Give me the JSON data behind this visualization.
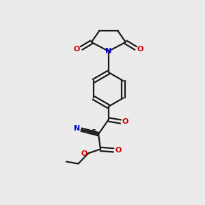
{
  "bg_color": "#ebebeb",
  "bond_color": "#1a1a1a",
  "n_color": "#0000cc",
  "o_color": "#cc0000",
  "figsize": [
    3.0,
    3.0
  ],
  "dpi": 100,
  "lw": 1.6,
  "fs": 8.0,
  "xlim": [
    0,
    10
  ],
  "ylim": [
    0,
    10
  ]
}
